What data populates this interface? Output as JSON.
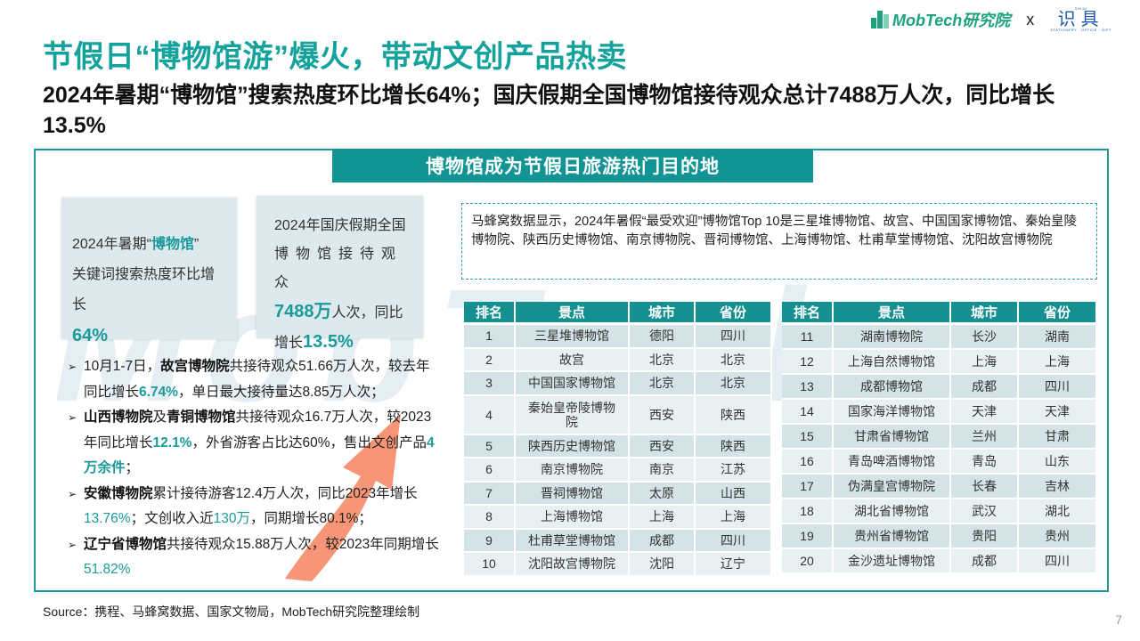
{
  "header": {
    "logo_mobtech": "MobTech研究院",
    "logo_separator": "x",
    "logo_partner_top": "SHIJU",
    "logo_partner": "识具",
    "logo_partner_bottom": "STATIONERY · OFFICE · GIFT"
  },
  "title": "节假日“博物馆游”爆火，带动文创产品热卖",
  "subtitle": "2024年暑期“博物馆”搜索热度环比增长64%；国庆假期全国博物馆接待观众总计7488万人次，同比增长13.5%",
  "banner": "博物馆成为节假日旅游热门目的地",
  "watermark": "MobTech",
  "stat1": {
    "line1_pre": "2024年暑期“",
    "line1_hl": "博物馆",
    "line1_post": "”",
    "line2": "关键词搜索热度环比增长",
    "value": "64%"
  },
  "stat2": {
    "line1": "2024年国庆假期全国",
    "line2": "博物馆接待观众",
    "value": "7488万",
    "line3_post": "人次，同比",
    "line4_pre": "增长",
    "growth": "13.5%"
  },
  "bullets": [
    {
      "a": "10月1-7日，",
      "b": "故宫博物院",
      "c": "共接待观众51.66万人次，较去年同比增长",
      "d": "6.74%",
      "e": "，单日最大接待量达8.85万人次；"
    },
    {
      "b1": "山西博物院",
      "a": "及",
      "b2": "青铜博物馆",
      "c": "共接待观众16.7万人次，较2023年同比增长",
      "d": "12.1%",
      "e": "，外省游客占比达60%，售出文创产品",
      "f": "4万余件",
      "g": "；"
    },
    {
      "b": "安徽博物院",
      "c": "累计接待游客12.4万人次，同比2023年增长",
      "d": "13.76%",
      "e": "；文创收入近",
      "f": "130万",
      "g": "，同期增长80.1%；"
    },
    {
      "b": "辽宁省博物馆",
      "c": "共接待观众15.88万人次，较2023年同期增长",
      "d": "51.82%"
    }
  ],
  "note": "马蜂窝数据显示，2024年暑假“最受欢迎”博物馆Top 10是三星堆博物馆、故宫、中国国家博物馆、秦始皇陵博物院、陕西历史博物馆、南京博物院、晋祠博物馆、上海博物馆、杜甫草堂博物馆、沈阳故宫博物院",
  "table_headers": [
    "排名",
    "景点",
    "城市",
    "省份"
  ],
  "table1": [
    [
      "1",
      "三星堆博物馆",
      "德阳",
      "四川"
    ],
    [
      "2",
      "故宫",
      "北京",
      "北京"
    ],
    [
      "3",
      "中国国家博物馆",
      "北京",
      "北京"
    ],
    [
      "4",
      "秦始皇帝陵博物院",
      "西安",
      "陕西"
    ],
    [
      "5",
      "陕西历史博物馆",
      "西安",
      "陕西"
    ],
    [
      "6",
      "南京博物院",
      "南京",
      "江苏"
    ],
    [
      "7",
      "晋祠博物馆",
      "太原",
      "山西"
    ],
    [
      "8",
      "上海博物馆",
      "上海",
      "上海"
    ],
    [
      "9",
      "杜甫草堂博物馆",
      "成都",
      "四川"
    ],
    [
      "10",
      "沈阳故宫博物院",
      "沈阳",
      "辽宁"
    ]
  ],
  "table2": [
    [
      "11",
      "湖南博物院",
      "长沙",
      "湖南"
    ],
    [
      "12",
      "上海自然博物馆",
      "上海",
      "上海"
    ],
    [
      "13",
      "成都博物馆",
      "成都",
      "四川"
    ],
    [
      "14",
      "国家海洋博物馆",
      "天津",
      "天津"
    ],
    [
      "15",
      "甘肃省博物馆",
      "兰州",
      "甘肃"
    ],
    [
      "16",
      "青岛啤酒博物馆",
      "青岛",
      "山东"
    ],
    [
      "17",
      "伪满皇宫博物院",
      "长春",
      "吉林"
    ],
    [
      "18",
      "湖北省博物馆",
      "武汉",
      "湖北"
    ],
    [
      "19",
      "贵州省博物馆",
      "贵阳",
      "贵州"
    ],
    [
      "20",
      "金沙遗址博物馆",
      "成都",
      "四川"
    ]
  ],
  "source": "Source：携程、马蜂窝数据、国家文物局，MobTech研究院整理绘制",
  "page_number": "7",
  "colors": {
    "accent": "#13a39c",
    "banner": "#139494",
    "arrow": "#f4845f"
  }
}
